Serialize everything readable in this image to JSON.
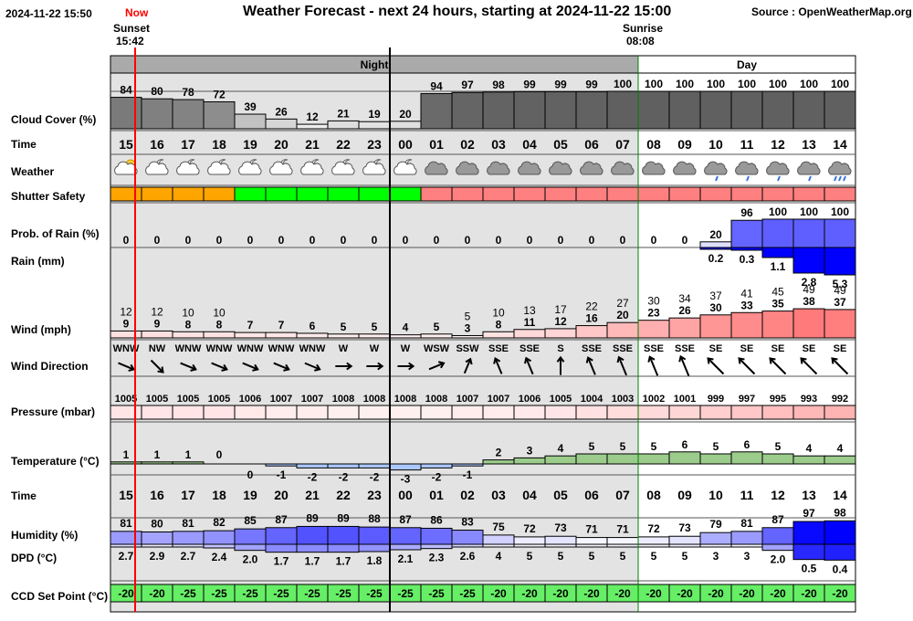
{
  "header": {
    "timestamp": "2024-11-22 15:50",
    "now_label": "Now",
    "title": "Weather Forecast - next 24 hours, starting at 2024-11-22 15:00",
    "source": "Source : OpenWeatherMap.org",
    "sunset_label": "Sunset",
    "sunset_time": "15:42",
    "sunrise_label": "Sunrise",
    "sunrise_time": "08:08"
  },
  "period_labels": {
    "night": "Night",
    "day": "Day"
  },
  "row_labels": {
    "cloud": "Cloud Cover (%)",
    "time_top": "Time",
    "weather": "Weather",
    "shutter": "Shutter Safety",
    "prob_rain": "Prob. of Rain (%)",
    "rain": "Rain (mm)",
    "wind": "Wind (mph)",
    "wind_dir": "Wind Direction",
    "pressure": "Pressure (mbar)",
    "temperature": "Temperature (°C)",
    "time_bottom": "Time",
    "humidity": "Humidity (%)",
    "dpd": "DPD (°C)",
    "ccd": "CCD Set Point (°C)"
  },
  "colors": {
    "night_bg": "#e3e3e3",
    "shutter_orange": "#ffa500",
    "shutter_green": "#00ff00",
    "shutter_red": "#ff8080",
    "rain_blue": "#0000ff",
    "wind_red": "#ff8080",
    "temp_green": "#9ccc8c",
    "temp_blue": "#aac8ff",
    "ccd_green": "#66ee66",
    "now_red": "#ff0000",
    "day_line": "#008000"
  },
  "chart_data": {
    "type": "table",
    "hours": [
      "15",
      "16",
      "17",
      "18",
      "19",
      "20",
      "21",
      "22",
      "23",
      "00",
      "01",
      "02",
      "03",
      "04",
      "05",
      "06",
      "07",
      "08",
      "09",
      "10",
      "11",
      "12",
      "13",
      "14"
    ],
    "period": [
      "night",
      "night",
      "night",
      "night",
      "night",
      "night",
      "night",
      "night",
      "night",
      "night",
      "night",
      "night",
      "night",
      "night",
      "night",
      "night",
      "night",
      "day",
      "day",
      "day",
      "day",
      "day",
      "day",
      "day"
    ],
    "cloud_cover": [
      84,
      80,
      78,
      72,
      39,
      26,
      12,
      21,
      19,
      20,
      94,
      97,
      98,
      99,
      99,
      99,
      100,
      100,
      100,
      100,
      100,
      100,
      100,
      100
    ],
    "weather_icons": [
      "partly-cloudy-sun-icon",
      "partly-cloudy-moon-icon",
      "partly-cloudy-moon-icon",
      "partly-cloudy-moon-icon",
      "partly-cloudy-moon-icon",
      "partly-cloudy-moon-icon",
      "partly-cloudy-moon-icon",
      "partly-cloudy-moon-icon",
      "partly-cloudy-moon-icon",
      "partly-cloudy-moon-icon",
      "cloud-icon",
      "cloud-icon",
      "cloud-icon",
      "cloud-icon",
      "cloud-icon",
      "cloud-icon",
      "cloud-icon",
      "cloud-icon",
      "cloud-icon",
      "light-rain-icon",
      "light-rain-icon",
      "light-rain-icon",
      "light-rain-icon",
      "rain-icon"
    ],
    "shutter_safety": [
      "orange",
      "orange",
      "orange",
      "orange",
      "green",
      "green",
      "green",
      "green",
      "green",
      "green",
      "red",
      "red",
      "red",
      "red",
      "red",
      "red",
      "red",
      "red",
      "red",
      "red",
      "red",
      "red",
      "red",
      "red"
    ],
    "prob_rain": [
      0,
      0,
      0,
      0,
      0,
      0,
      0,
      0,
      0,
      0,
      0,
      0,
      0,
      0,
      0,
      0,
      0,
      0,
      0,
      20,
      96,
      100,
      100,
      100
    ],
    "rain_mm": [
      null,
      null,
      null,
      null,
      null,
      null,
      null,
      null,
      null,
      null,
      null,
      null,
      null,
      null,
      null,
      null,
      null,
      null,
      null,
      0.2,
      0.3,
      1.1,
      2.8,
      5.3
    ],
    "rain_mm_label": [
      "",
      "",
      "",
      "",
      "",
      "",
      "",
      "",
      "",
      "",
      "",
      "",
      "",
      "",
      "",
      "",
      "",
      "",
      "",
      "0.2",
      "0.3",
      "1.1",
      "2.8",
      "5.3"
    ],
    "wind_speed": [
      9,
      9,
      8,
      8,
      7,
      7,
      6,
      5,
      5,
      4,
      5,
      3,
      8,
      11,
      12,
      16,
      20,
      23,
      26,
      30,
      33,
      35,
      38,
      37
    ],
    "wind_gust": [
      12,
      12,
      10,
      10,
      null,
      null,
      null,
      null,
      null,
      null,
      null,
      5,
      10,
      13,
      17,
      22,
      27,
      30,
      34,
      37,
      41,
      45,
      49,
      49
    ],
    "wind_gust_label": [
      "12",
      "12",
      "10",
      "10",
      "",
      "",
      "",
      "",
      "",
      "",
      "",
      "5",
      "10",
      "13",
      "17",
      "22",
      "27",
      "30",
      "34",
      "37",
      "41",
      "45",
      "49",
      "49"
    ],
    "wind_dir": [
      "WNW",
      "NW",
      "WNW",
      "WNW",
      "WNW",
      "WNW",
      "WNW",
      "W",
      "W",
      "W",
      "WSW",
      "SSW",
      "SSE",
      "SSE",
      "S",
      "SSE",
      "SSE",
      "SSE",
      "SSE",
      "SE",
      "SE",
      "SE",
      "SE",
      "SE"
    ],
    "pressure": [
      1005,
      1005,
      1005,
      1005,
      1006,
      1007,
      1007,
      1008,
      1008,
      1008,
      1008,
      1007,
      1007,
      1006,
      1005,
      1004,
      1003,
      1002,
      1001,
      999,
      997,
      995,
      993,
      992
    ],
    "temperature": [
      1,
      1,
      1,
      0,
      0,
      -1,
      -2,
      -2,
      -2,
      -3,
      -2,
      -1,
      2,
      3,
      4,
      5,
      5,
      5,
      6,
      5,
      6,
      5,
      4,
      4
    ],
    "humidity": [
      81,
      80,
      81,
      82,
      85,
      87,
      89,
      89,
      88,
      87,
      86,
      83,
      75,
      72,
      73,
      71,
      71,
      72,
      73,
      79,
      81,
      87,
      97,
      98
    ],
    "dpd": [
      "2.7",
      "2.9",
      "2.7",
      "2.4",
      "2.0",
      "1.7",
      "1.7",
      "1.7",
      "1.8",
      "2.1",
      "2.3",
      "2.6",
      "4",
      "5",
      "5",
      "5",
      "5",
      "5",
      "5",
      "3",
      "3",
      "2.0",
      "0.5",
      "0.4"
    ],
    "ccd_set_point": [
      -20,
      -20,
      -25,
      -25,
      -25,
      -25,
      -25,
      -25,
      -25,
      -25,
      -25,
      -25,
      -20,
      -20,
      -20,
      -20,
      -20,
      -20,
      -20,
      -20,
      -20,
      -20,
      -20,
      -20
    ]
  }
}
